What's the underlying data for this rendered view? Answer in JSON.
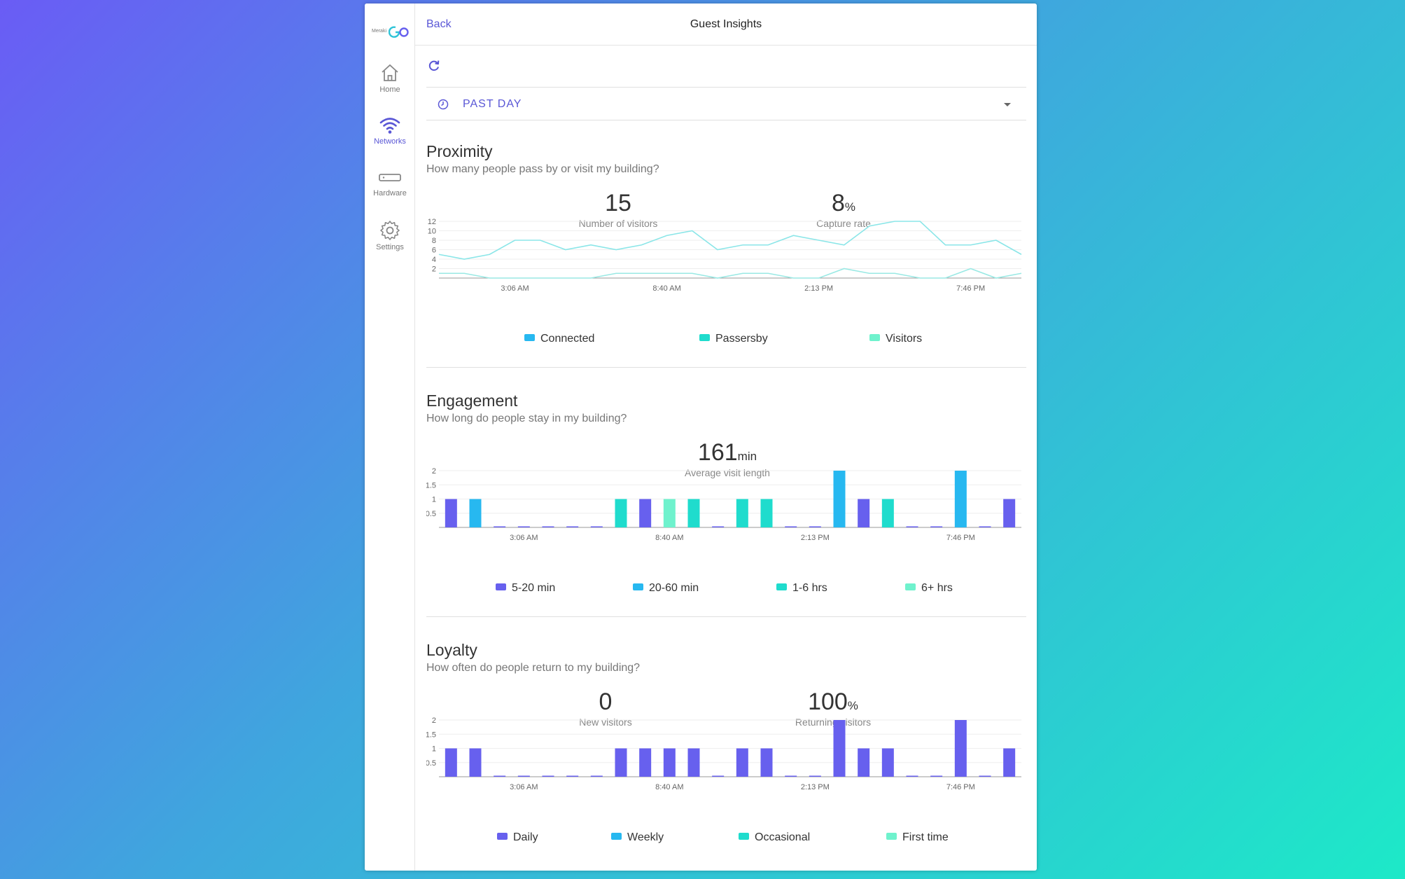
{
  "colors": {
    "accent": "#5a57d6",
    "series_a": "#6760ee",
    "series_b": "#27b8f0",
    "series_c": "#1fdccd",
    "series_d": "#6ff2cd",
    "line_visitors": "#8be6e8",
    "line_passersby": "#9ae9e4"
  },
  "sidebar": {
    "brand": "Meraki",
    "items": [
      {
        "label": "Home",
        "icon": "home-icon"
      },
      {
        "label": "Networks",
        "icon": "wifi-icon"
      },
      {
        "label": "Hardware",
        "icon": "hardware-icon"
      },
      {
        "label": "Settings",
        "icon": "gear-icon"
      }
    ]
  },
  "header": {
    "back_label": "Back",
    "title": "Guest Insights"
  },
  "filter": {
    "range_label": "PAST DAY"
  },
  "proximity": {
    "title": "Proximity",
    "question": "How many people pass by or visit my building?",
    "stats": [
      {
        "value": "15",
        "unit": "",
        "caption": "Number of visitors"
      },
      {
        "value": "8",
        "unit": "%",
        "caption": "Capture rate"
      }
    ],
    "legend": [
      "Connected",
      "Passersby",
      "Visitors"
    ]
  },
  "engagement": {
    "title": "Engagement",
    "question": "How long do people stay in my building?",
    "stats": [
      {
        "value": "161",
        "unit": "min",
        "caption": "Average visit length"
      }
    ],
    "legend": [
      "5-20 min",
      "20-60 min",
      "1-6 hrs",
      "6+ hrs"
    ]
  },
  "loyalty": {
    "title": "Loyalty",
    "question": "How often do people return to my building?",
    "stats": [
      {
        "value": "0",
        "unit": "",
        "caption": "New visitors"
      },
      {
        "value": "100",
        "unit": "%",
        "caption": "Returning visitors"
      }
    ],
    "legend": [
      "Daily",
      "Weekly",
      "Occasional",
      "First time"
    ]
  },
  "chart_data": [
    {
      "type": "line",
      "y_ticks": [
        "2",
        "4",
        "6",
        "8",
        "10",
        "12"
      ],
      "ylim": [
        0,
        12
      ],
      "x_ticks": [
        "3:06 AM",
        "8:40 AM",
        "2:13 PM",
        "7:46 PM"
      ],
      "x_tick_index": [
        3,
        9,
        15,
        21
      ],
      "series": [
        {
          "name": "Passersby",
          "values": [
            5,
            4,
            5,
            8,
            8,
            6,
            7,
            6,
            7,
            9,
            10,
            6,
            7,
            7,
            9,
            8,
            7,
            11,
            12,
            12,
            7,
            7,
            8,
            5
          ]
        },
        {
          "name": "Visitors",
          "values": [
            1,
            1,
            0,
            0,
            0,
            0,
            0,
            1,
            1,
            1,
            1,
            0,
            1,
            1,
            0,
            0,
            2,
            1,
            1,
            0,
            0,
            2,
            0,
            1
          ]
        }
      ]
    },
    {
      "type": "bar",
      "y_ticks": [
        "0.5",
        "1",
        "1.5",
        "2"
      ],
      "ylim": [
        0,
        2
      ],
      "x_ticks": [
        "3:06 AM",
        "8:40 AM",
        "2:13 PM",
        "7:46 PM"
      ],
      "x_tick_index": [
        3,
        9,
        15,
        21
      ],
      "values": [
        1,
        1,
        0,
        0,
        0,
        0,
        0,
        1,
        1,
        1,
        1,
        0,
        1,
        1,
        0,
        0,
        2,
        1,
        1,
        0,
        0,
        2,
        0,
        1
      ],
      "series_index": [
        0,
        1,
        0,
        0,
        0,
        0,
        0,
        2,
        0,
        3,
        2,
        0,
        2,
        2,
        0,
        0,
        1,
        0,
        2,
        0,
        0,
        1,
        0,
        0
      ],
      "series": [
        "5-20 min",
        "20-60 min",
        "1-6 hrs",
        "6+ hrs"
      ]
    },
    {
      "type": "bar",
      "y_ticks": [
        "0.5",
        "1",
        "1.5",
        "2"
      ],
      "ylim": [
        0,
        2
      ],
      "x_ticks": [
        "3:06 AM",
        "8:40 AM",
        "2:13 PM",
        "7:46 PM"
      ],
      "x_tick_index": [
        3,
        9,
        15,
        21
      ],
      "values": [
        1,
        1,
        0,
        0,
        0,
        0,
        0,
        1,
        1,
        1,
        1,
        0,
        1,
        1,
        0,
        0,
        2,
        1,
        1,
        0,
        0,
        2,
        0,
        1
      ],
      "series_index": [
        0,
        0,
        0,
        0,
        0,
        0,
        0,
        0,
        0,
        0,
        0,
        0,
        0,
        0,
        0,
        0,
        0,
        0,
        0,
        0,
        0,
        0,
        0,
        0
      ],
      "series": [
        "Daily",
        "Weekly",
        "Occasional",
        "First time"
      ]
    }
  ]
}
